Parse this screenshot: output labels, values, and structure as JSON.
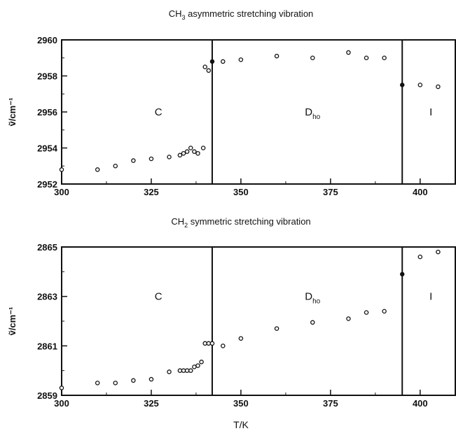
{
  "chart_data": [
    {
      "type": "scatter",
      "title_main": "CH",
      "title_sub": "3",
      "title_rest": " asymmetric stretching vibration",
      "ylabel": "ṽ/cm⁻¹",
      "xlim": [
        300,
        410
      ],
      "ylim": [
        2952,
        2960
      ],
      "xticks": [
        300,
        325,
        350,
        375,
        400
      ],
      "yticks": [
        2952,
        2954,
        2956,
        2958,
        2960
      ],
      "phase_boundaries": [
        342,
        395
      ],
      "region_labels": [
        {
          "main": "C",
          "sub": "",
          "x": 327,
          "y": 2956.0
        },
        {
          "main": "D",
          "sub": "ho",
          "x": 370,
          "y": 2956.0
        },
        {
          "main": "I",
          "sub": "",
          "x": 403,
          "y": 2956.0
        }
      ],
      "points": [
        {
          "x": 300,
          "y": 2952.8,
          "filled": false
        },
        {
          "x": 310,
          "y": 2952.8,
          "filled": false
        },
        {
          "x": 315,
          "y": 2953.0,
          "filled": false
        },
        {
          "x": 320,
          "y": 2953.3,
          "filled": false
        },
        {
          "x": 325,
          "y": 2953.4,
          "filled": false
        },
        {
          "x": 330,
          "y": 2953.5,
          "filled": false
        },
        {
          "x": 333,
          "y": 2953.6,
          "filled": false
        },
        {
          "x": 334,
          "y": 2953.7,
          "filled": false
        },
        {
          "x": 335,
          "y": 2953.8,
          "filled": false
        },
        {
          "x": 336,
          "y": 2954.0,
          "filled": false
        },
        {
          "x": 337,
          "y": 2953.8,
          "filled": false
        },
        {
          "x": 338,
          "y": 2953.7,
          "filled": false
        },
        {
          "x": 339.5,
          "y": 2954.0,
          "filled": false
        },
        {
          "x": 340,
          "y": 2958.5,
          "filled": false
        },
        {
          "x": 341,
          "y": 2958.3,
          "filled": false
        },
        {
          "x": 342,
          "y": 2958.8,
          "filled": true
        },
        {
          "x": 345,
          "y": 2958.8,
          "filled": false
        },
        {
          "x": 350,
          "y": 2958.9,
          "filled": false
        },
        {
          "x": 360,
          "y": 2959.1,
          "filled": false
        },
        {
          "x": 370,
          "y": 2959.0,
          "filled": false
        },
        {
          "x": 380,
          "y": 2959.3,
          "filled": false
        },
        {
          "x": 385,
          "y": 2959.0,
          "filled": false
        },
        {
          "x": 390,
          "y": 2959.0,
          "filled": false
        },
        {
          "x": 395,
          "y": 2957.5,
          "filled": true
        },
        {
          "x": 400,
          "y": 2957.5,
          "filled": false
        },
        {
          "x": 405,
          "y": 2957.4,
          "filled": false
        }
      ]
    },
    {
      "type": "scatter",
      "title_main": "CH",
      "title_sub": "2",
      "title_rest": " symmetric stretching vibration",
      "ylabel": "ṽ/cm⁻¹",
      "xlabel": "T/K",
      "xlim": [
        300,
        410
      ],
      "ylim": [
        2859,
        2865
      ],
      "xticks": [
        300,
        325,
        350,
        375,
        400
      ],
      "yticks": [
        2859,
        2861,
        2863,
        2865
      ],
      "phase_boundaries": [
        342,
        395
      ],
      "region_labels": [
        {
          "main": "C",
          "sub": "",
          "x": 327,
          "y": 2863.0
        },
        {
          "main": "D",
          "sub": "ho",
          "x": 370,
          "y": 2863.0
        },
        {
          "main": "I",
          "sub": "",
          "x": 403,
          "y": 2863.0
        }
      ],
      "points": [
        {
          "x": 300,
          "y": 2859.3,
          "filled": false
        },
        {
          "x": 310,
          "y": 2859.5,
          "filled": false
        },
        {
          "x": 315,
          "y": 2859.5,
          "filled": false
        },
        {
          "x": 320,
          "y": 2859.6,
          "filled": false
        },
        {
          "x": 325,
          "y": 2859.65,
          "filled": false
        },
        {
          "x": 330,
          "y": 2859.95,
          "filled": false
        },
        {
          "x": 333,
          "y": 2860.0,
          "filled": false
        },
        {
          "x": 334,
          "y": 2860.0,
          "filled": false
        },
        {
          "x": 335,
          "y": 2860.0,
          "filled": false
        },
        {
          "x": 336,
          "y": 2860.0,
          "filled": false
        },
        {
          "x": 337,
          "y": 2860.15,
          "filled": false
        },
        {
          "x": 338,
          "y": 2860.2,
          "filled": false
        },
        {
          "x": 339,
          "y": 2860.35,
          "filled": false
        },
        {
          "x": 340,
          "y": 2861.1,
          "filled": false
        },
        {
          "x": 341,
          "y": 2861.1,
          "filled": false
        },
        {
          "x": 342,
          "y": 2861.1,
          "filled": false
        },
        {
          "x": 345,
          "y": 2861.0,
          "filled": false
        },
        {
          "x": 350,
          "y": 2861.3,
          "filled": false
        },
        {
          "x": 360,
          "y": 2861.7,
          "filled": false
        },
        {
          "x": 370,
          "y": 2861.95,
          "filled": false
        },
        {
          "x": 380,
          "y": 2862.1,
          "filled": false
        },
        {
          "x": 385,
          "y": 2862.35,
          "filled": false
        },
        {
          "x": 390,
          "y": 2862.4,
          "filled": false
        },
        {
          "x": 395,
          "y": 2863.9,
          "filled": true
        },
        {
          "x": 400,
          "y": 2864.6,
          "filled": false
        },
        {
          "x": 405,
          "y": 2864.8,
          "filled": false
        }
      ]
    }
  ]
}
